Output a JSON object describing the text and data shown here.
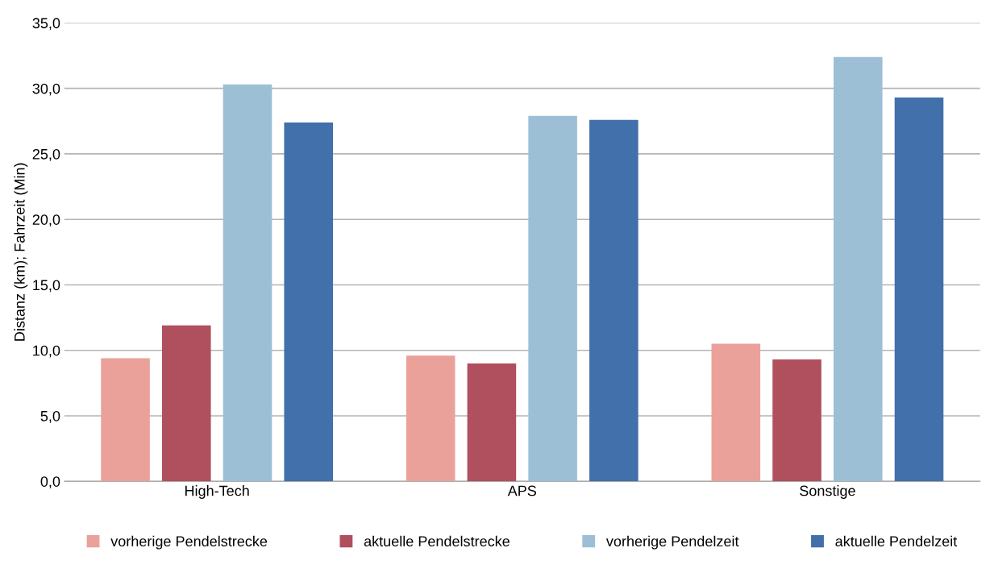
{
  "chart_data": {
    "type": "bar",
    "ylabel": "Distanz (km); Fahrzeit (Min)",
    "categories": [
      "High-Tech",
      "APS",
      "Sonstige"
    ],
    "series": [
      {
        "name": "vorherige Pendelstrecke",
        "color": "#eaa19a",
        "values": [
          9.4,
          9.6,
          10.5
        ]
      },
      {
        "name": "aktuelle Pendelstrecke",
        "color": "#b0505e",
        "values": [
          11.9,
          9.0,
          9.3
        ]
      },
      {
        "name": "vorherige Pendelzeit",
        "color": "#9dbfd6",
        "values": [
          30.3,
          27.9,
          32.4
        ]
      },
      {
        "name": "aktuelle Pendelzeit",
        "color": "#4170aa",
        "values": [
          27.4,
          27.6,
          29.3
        ]
      }
    ],
    "ylim": [
      0,
      35
    ],
    "yticks": [
      {
        "value": 0,
        "label": "0,0"
      },
      {
        "value": 5,
        "label": "5,0"
      },
      {
        "value": 10,
        "label": "10,0"
      },
      {
        "value": 15,
        "label": "15,0"
      },
      {
        "value": 20,
        "label": "20,0"
      },
      {
        "value": 25,
        "label": "25,0"
      },
      {
        "value": 30,
        "label": "30,0"
      },
      {
        "value": 35,
        "label": "35,0"
      }
    ],
    "grid": "y",
    "legend": "bottom"
  }
}
